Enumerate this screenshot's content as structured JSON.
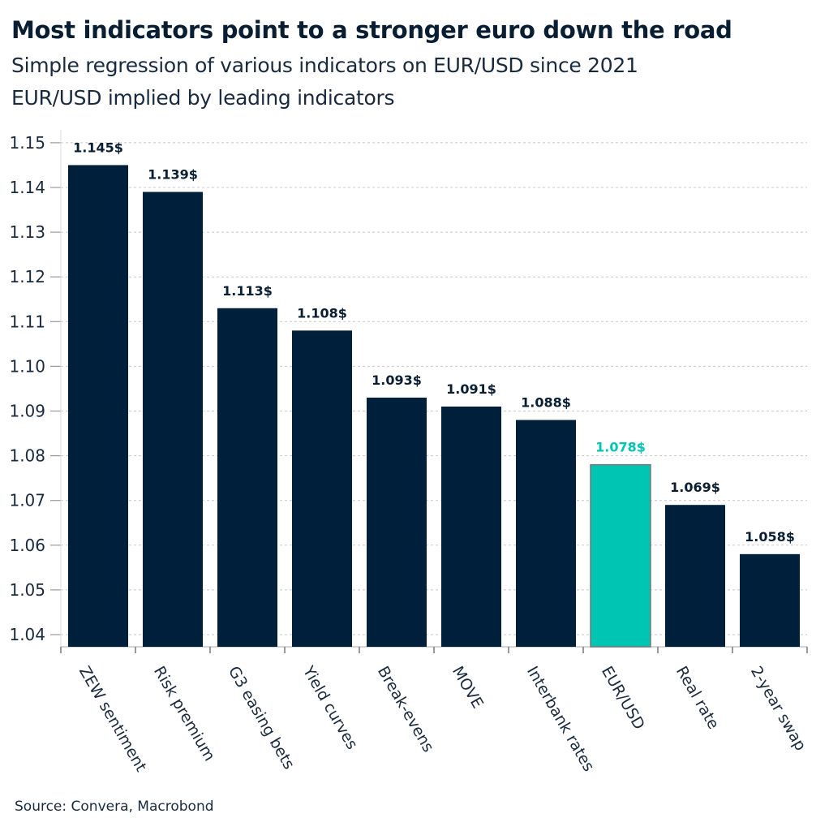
{
  "chart_data": {
    "type": "bar",
    "title": "Most indicators point to a stronger euro down the road",
    "subtitle": "Simple regression of various indicators on EUR/USD since 2021",
    "subtitle2": "EUR/USD implied by leading indicators",
    "source": "Source: Convera, Macrobond",
    "categories": [
      "ZEW sentiment",
      "Risk premium",
      "G3 easing bets",
      "Yield curves",
      "Break-evens",
      "MOVE",
      "Interbank rates",
      "EUR/USD",
      "Real rate",
      "2-year swap"
    ],
    "values": [
      1.145,
      1.139,
      1.113,
      1.108,
      1.093,
      1.091,
      1.088,
      1.078,
      1.069,
      1.058
    ],
    "data_labels": [
      "1.145$",
      "1.139$",
      "1.113$",
      "1.108$",
      "1.093$",
      "1.091$",
      "1.088$",
      "1.078$",
      "1.069$",
      "1.058$"
    ],
    "highlight_category": "EUR/USD",
    "yticks": [
      "1.04",
      "1.05",
      "1.06",
      "1.07",
      "1.08",
      "1.09",
      "1.10",
      "1.11",
      "1.12",
      "1.13",
      "1.14",
      "1.15"
    ],
    "ylim": [
      1.0373,
      1.15
    ],
    "grid": true,
    "colors": {
      "bar": "#001f3a",
      "highlight": "#00c5b3",
      "text": "#0a1e33"
    },
    "xlabel": "",
    "ylabel": ""
  }
}
